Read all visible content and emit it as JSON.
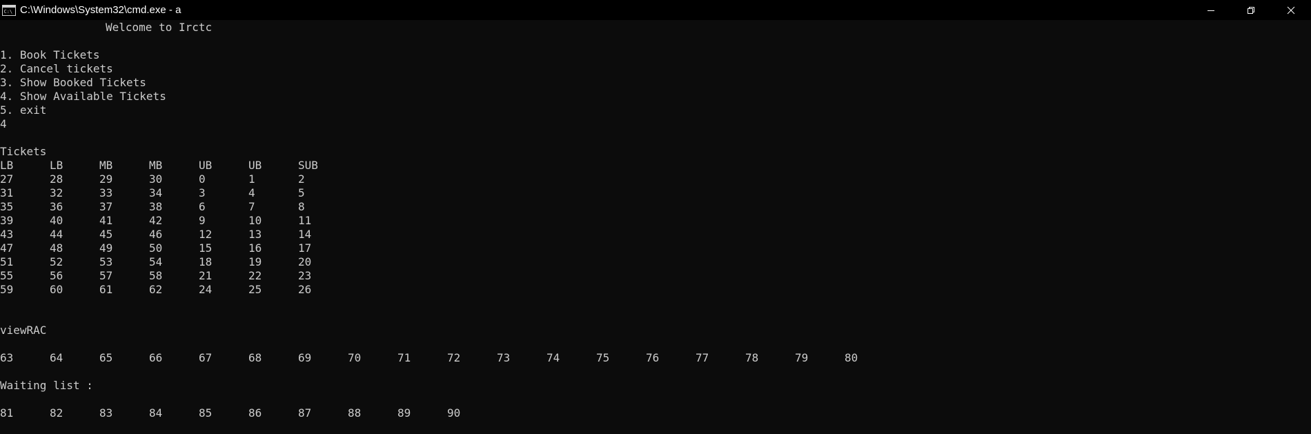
{
  "window": {
    "title": "C:\\Windows\\System32\\cmd.exe - a"
  },
  "console": {
    "welcome": "Welcome to Irctc",
    "menu": [
      "1. Book Tickets",
      "2. Cancel tickets",
      "3. Show Booked Tickets",
      "4. Show Available Tickets",
      "5. exit"
    ],
    "input": "4",
    "tickets_label": "Tickets",
    "headers": [
      "LB",
      "LB",
      "MB",
      "MB",
      "UB",
      "UB",
      "SUB"
    ],
    "rows": [
      [
        "27",
        "28",
        "29",
        "30",
        "0",
        "1",
        "2"
      ],
      [
        "31",
        "32",
        "33",
        "34",
        "3",
        "4",
        "5"
      ],
      [
        "35",
        "36",
        "37",
        "38",
        "6",
        "7",
        "8"
      ],
      [
        "39",
        "40",
        "41",
        "42",
        "9",
        "10",
        "11"
      ],
      [
        "43",
        "44",
        "45",
        "46",
        "12",
        "13",
        "14"
      ],
      [
        "47",
        "48",
        "49",
        "50",
        "15",
        "16",
        "17"
      ],
      [
        "51",
        "52",
        "53",
        "54",
        "18",
        "19",
        "20"
      ],
      [
        "55",
        "56",
        "57",
        "58",
        "21",
        "22",
        "23"
      ],
      [
        "59",
        "60",
        "61",
        "62",
        "24",
        "25",
        "26"
      ]
    ],
    "rac_label": "viewRAC",
    "rac": [
      "63",
      "64",
      "65",
      "66",
      "67",
      "68",
      "69",
      "70",
      "71",
      "72",
      "73",
      "74",
      "75",
      "76",
      "77",
      "78",
      "79",
      "80"
    ],
    "waiting_label": "Waiting list :",
    "waiting": [
      "81",
      "82",
      "83",
      "84",
      "85",
      "86",
      "87",
      "88",
      "89",
      "90"
    ]
  }
}
